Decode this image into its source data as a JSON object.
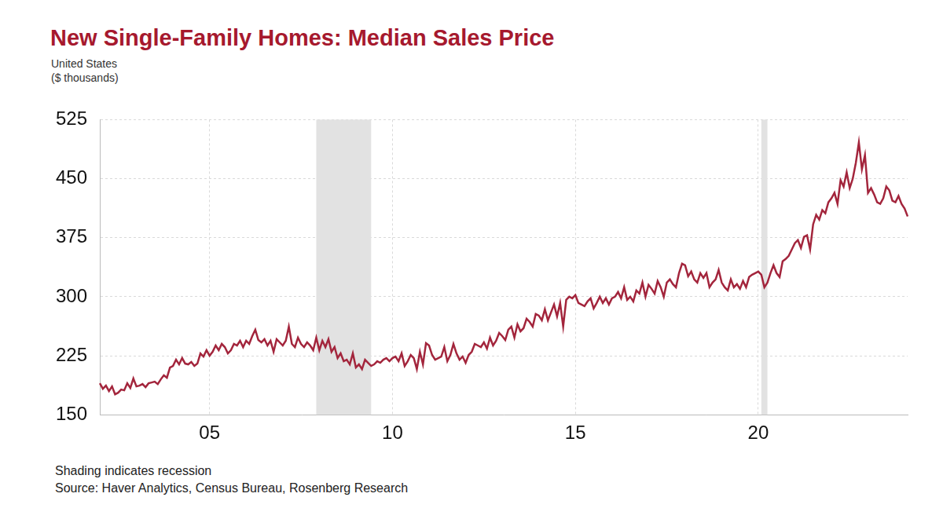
{
  "chart_data": {
    "type": "line",
    "title": "New Single-Family Homes: Median Sales Price",
    "subtitle": "United States",
    "y_label": "($ thousands)",
    "note": "Shading indicates recession",
    "source": "Source: Haver Analytics, Census Bureau, Rosenberg Research",
    "color": "#a3253c",
    "grid": true,
    "ylim": [
      150,
      525
    ],
    "yticks": [
      150,
      225,
      300,
      375,
      450,
      525
    ],
    "recession_spans": [
      [
        71,
        89
      ],
      [
        217,
        219
      ]
    ],
    "categories": [
      null,
      null,
      null,
      null,
      null,
      null,
      null,
      null,
      null,
      null,
      null,
      null,
      null,
      null,
      null,
      null,
      null,
      null,
      null,
      null,
      null,
      null,
      null,
      null,
      null,
      null,
      null,
      null,
      null,
      null,
      null,
      null,
      null,
      null,
      null,
      null,
      "05",
      null,
      null,
      null,
      null,
      null,
      null,
      null,
      null,
      null,
      null,
      null,
      null,
      null,
      null,
      null,
      null,
      null,
      null,
      null,
      null,
      null,
      null,
      null,
      null,
      null,
      null,
      null,
      null,
      null,
      null,
      null,
      null,
      null,
      null,
      null,
      null,
      null,
      null,
      null,
      null,
      null,
      null,
      null,
      null,
      null,
      null,
      null,
      null,
      null,
      null,
      null,
      null,
      null,
      null,
      null,
      null,
      null,
      null,
      null,
      "10",
      null,
      null,
      null,
      null,
      null,
      null,
      null,
      null,
      null,
      null,
      null,
      null,
      null,
      null,
      null,
      null,
      null,
      null,
      null,
      null,
      null,
      null,
      null,
      null,
      null,
      null,
      null,
      null,
      null,
      null,
      null,
      null,
      null,
      null,
      null,
      null,
      null,
      null,
      null,
      null,
      null,
      null,
      null,
      null,
      null,
      null,
      null,
      null,
      null,
      null,
      null,
      null,
      null,
      null,
      null,
      null,
      null,
      null,
      null,
      "15",
      null,
      null,
      null,
      null,
      null,
      null,
      null,
      null,
      null,
      null,
      null,
      null,
      null,
      null,
      null,
      null,
      null,
      null,
      null,
      null,
      null,
      null,
      null,
      null,
      null,
      null,
      null,
      null,
      null,
      null,
      null,
      null,
      null,
      null,
      null,
      null,
      null,
      null,
      null,
      null,
      null,
      null,
      null,
      null,
      null,
      null,
      null,
      null,
      null,
      null,
      null,
      null,
      null,
      null,
      null,
      null,
      null,
      null,
      null,
      "20",
      null,
      null,
      null,
      null,
      null,
      null,
      null,
      null,
      null,
      null,
      null,
      null,
      null,
      null,
      null,
      null,
      null,
      null,
      null,
      null,
      null,
      null,
      null,
      null,
      null,
      null,
      null,
      null,
      null,
      null,
      null,
      null,
      null,
      null,
      null,
      null,
      null,
      null,
      null,
      null,
      null,
      null,
      null,
      null,
      null,
      null,
      null,
      null,
      null
    ],
    "values": [
      190,
      183,
      187,
      180,
      186,
      176,
      178,
      182,
      181,
      190,
      184,
      196,
      186,
      187,
      189,
      185,
      190,
      191,
      192,
      189,
      195,
      200,
      197,
      210,
      212,
      220,
      214,
      222,
      215,
      214,
      217,
      212,
      215,
      228,
      224,
      232,
      225,
      230,
      238,
      232,
      240,
      236,
      228,
      232,
      240,
      238,
      244,
      236,
      244,
      240,
      250,
      258,
      245,
      242,
      246,
      238,
      244,
      230,
      246,
      242,
      238,
      244,
      262,
      240,
      236,
      248,
      240,
      236,
      242,
      238,
      232,
      248,
      232,
      244,
      236,
      246,
      230,
      236,
      222,
      228,
      218,
      220,
      214,
      228,
      210,
      214,
      208,
      220,
      216,
      212,
      214,
      218,
      216,
      220,
      222,
      218,
      222,
      224,
      218,
      228,
      212,
      218,
      226,
      222,
      208,
      230,
      214,
      241,
      238,
      226,
      220,
      222,
      224,
      236,
      218,
      226,
      240,
      228,
      220,
      224,
      216,
      226,
      230,
      240,
      238,
      236,
      242,
      234,
      248,
      238,
      244,
      254,
      250,
      245,
      258,
      262,
      248,
      265,
      256,
      260,
      272,
      268,
      262,
      278,
      276,
      270,
      284,
      270,
      280,
      290,
      275,
      292,
      262,
      296,
      300,
      298,
      302,
      292,
      290,
      288,
      294,
      298,
      285,
      292,
      300,
      292,
      298,
      290,
      298,
      300,
      306,
      298,
      312,
      296,
      300,
      294,
      308,
      304,
      318,
      300,
      315,
      310,
      304,
      320,
      312,
      300,
      318,
      322,
      316,
      312,
      330,
      342,
      340,
      326,
      332,
      322,
      318,
      330,
      324,
      330,
      312,
      318,
      322,
      334,
      318,
      312,
      308,
      322,
      312,
      316,
      310,
      320,
      312,
      325,
      328,
      330,
      332,
      328,
      312,
      318,
      330,
      340,
      330,
      325,
      345,
      348,
      352,
      360,
      368,
      372,
      362,
      376,
      378,
      360,
      392,
      404,
      398,
      410,
      406,
      420,
      425,
      432,
      418,
      448,
      440,
      458,
      438,
      450,
      470,
      496,
      462,
      480,
      432,
      438,
      430,
      420,
      418,
      425,
      440,
      435,
      422,
      420,
      428,
      418,
      412,
      402
    ]
  }
}
